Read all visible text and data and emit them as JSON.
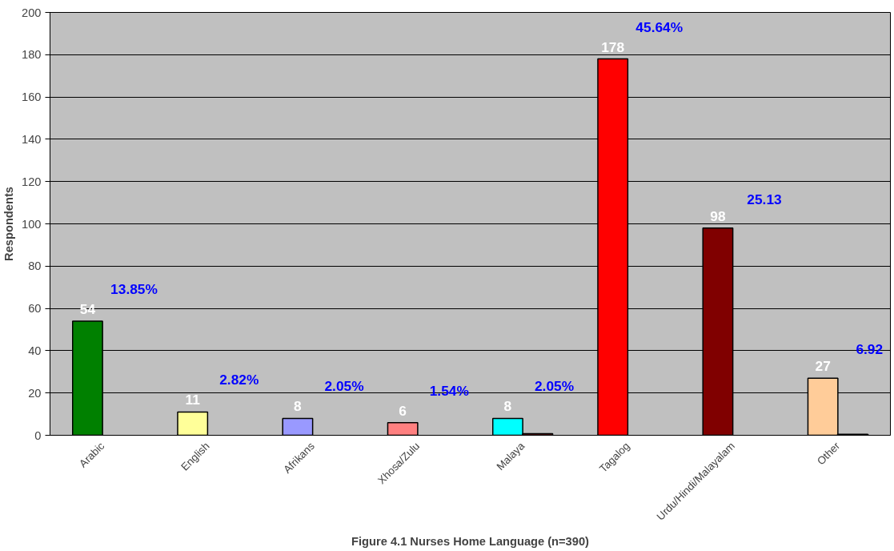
{
  "chart_data": {
    "type": "bar",
    "title": "Figure 4.1 Nurses Home Language (n=390)",
    "ylabel": "Respondents",
    "categories": [
      "Arabic",
      "English",
      "Afrikans",
      "Xhosa/Zulu",
      "Malaya",
      "Tagalog",
      "Urdu/Hindi/Malayalam",
      "Other"
    ],
    "series": [
      {
        "colors": [
          "#008000",
          "#ffff99",
          "#9999ff",
          "#ff8080",
          "#00ffff",
          "#ff0000",
          "#800000",
          "#ffcc99"
        ],
        "values": [
          54,
          11,
          8,
          6,
          8,
          178,
          98,
          27
        ],
        "data_labels": true
      },
      {
        "colors": [
          "#800000",
          "#800000",
          "#800000",
          "#800000",
          "#800000",
          "#800000",
          "#800000",
          "#000000"
        ],
        "values": [
          null,
          null,
          null,
          null,
          0.8,
          null,
          null,
          0.5
        ]
      }
    ],
    "ylim": [
      0,
      200
    ],
    "yticks": [
      0,
      20,
      40,
      60,
      80,
      100,
      120,
      140,
      160,
      180,
      200
    ],
    "grid": "y",
    "annotations": [
      "13.85%",
      "2.82%",
      "2.05%",
      "1.54%",
      "2.05%",
      "45.64%",
      "25.13",
      "6.92"
    ]
  }
}
